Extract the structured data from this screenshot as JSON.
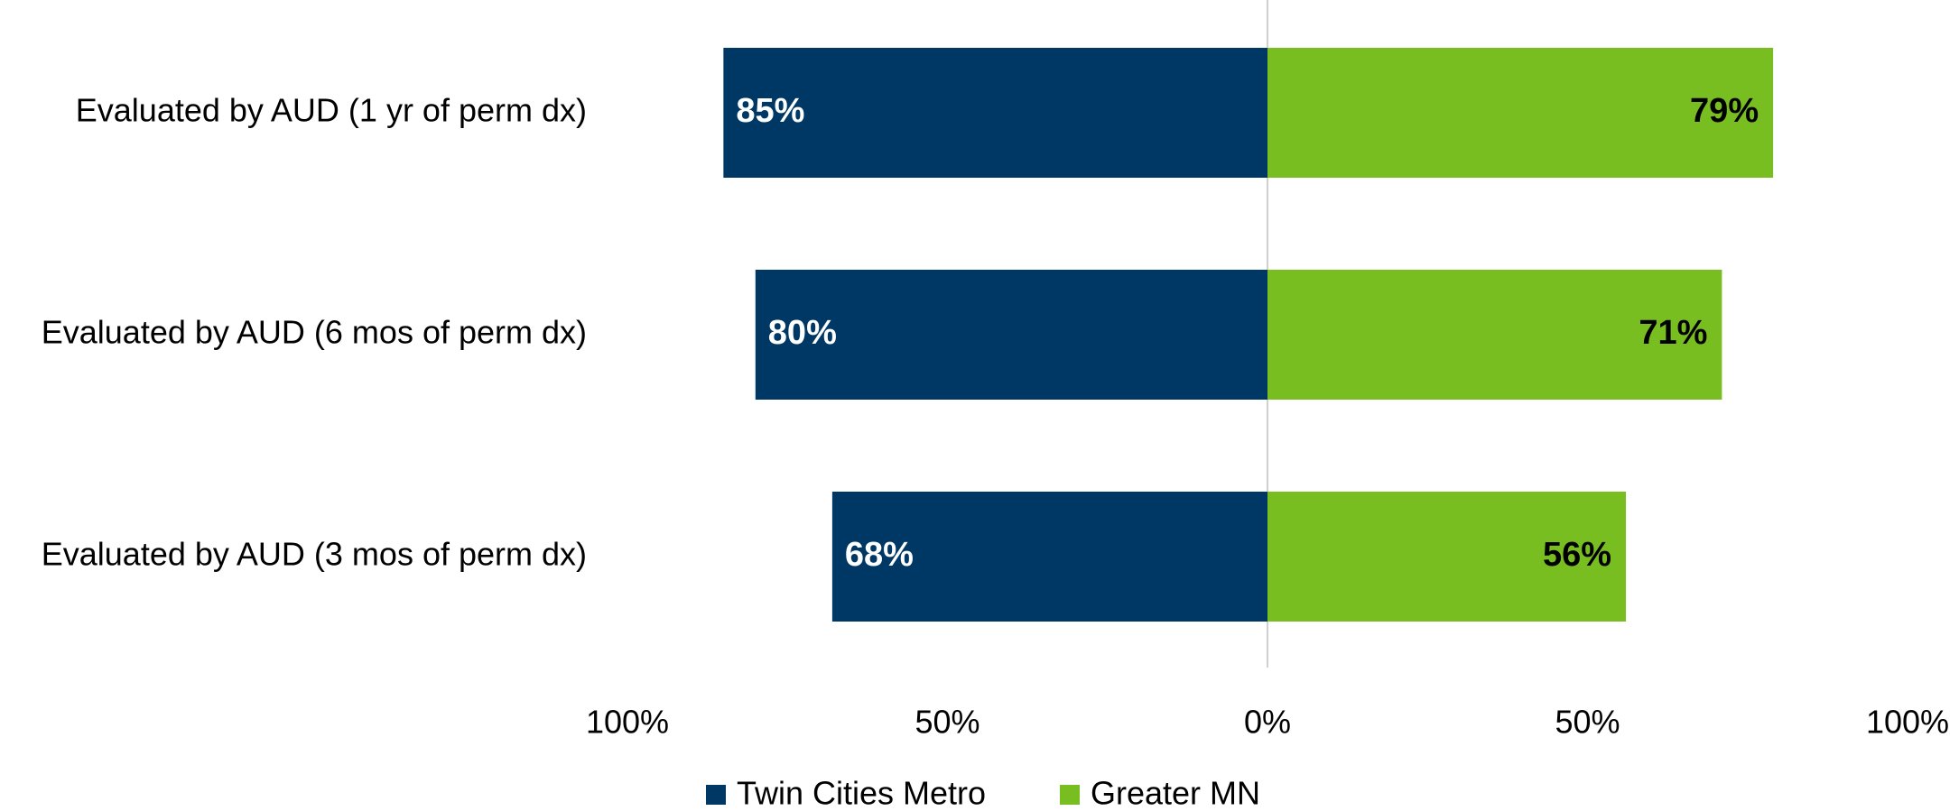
{
  "chart_data": {
    "type": "diverging_bar",
    "categories": [
      "Evaluated by AUD (1 yr of perm dx)",
      "Evaluated by AUD (6 mos of perm dx)",
      "Evaluated by AUD (3 mos of perm dx)"
    ],
    "series": [
      {
        "name": "Twin Cities Metro",
        "color": "#003865",
        "values": [
          85,
          80,
          68
        ],
        "value_labels": [
          "85%",
          "80%",
          "68%"
        ]
      },
      {
        "name": "Greater MN",
        "color": "#78be20",
        "values": [
          79,
          71,
          56
        ],
        "value_labels": [
          "79%",
          "71%",
          "56%"
        ]
      }
    ],
    "xlim": [
      -100,
      100
    ],
    "xticks": [
      {
        "value": -100,
        "label": "100%"
      },
      {
        "value": -50,
        "label": "50%"
      },
      {
        "value": 0,
        "label": "0%"
      },
      {
        "value": 50,
        "label": "50%"
      },
      {
        "value": 100,
        "label": "100%"
      }
    ],
    "legend": "bottom"
  }
}
